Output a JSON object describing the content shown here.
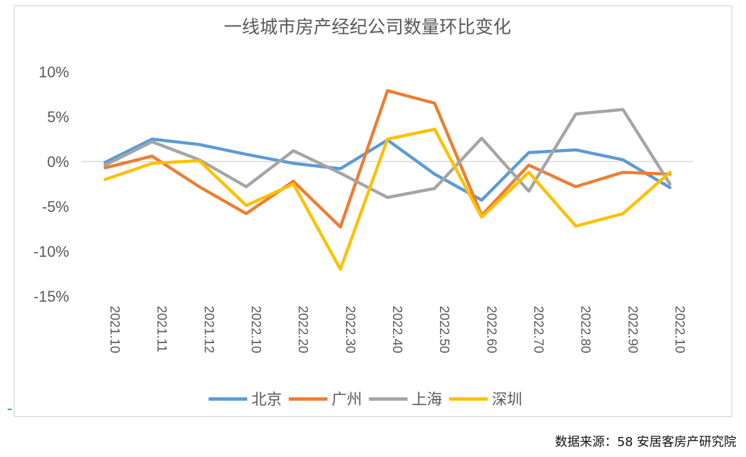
{
  "chart_data": {
    "type": "line",
    "title": "一线城市房产经纪公司数量环比变化",
    "categories": [
      "2021.10",
      "2021.11",
      "2021.12",
      "2022.10",
      "2022.20",
      "2022.30",
      "2022.40",
      "2022.50",
      "2022.60",
      "2022.70",
      "2022.80",
      "2022.90",
      "2022.10"
    ],
    "y_ticks": [
      10,
      5,
      0,
      -5,
      -10,
      -15
    ],
    "y_tick_labels": [
      "10%",
      "5%",
      "0%",
      "-5%",
      "-10%",
      "-15%"
    ],
    "ylim": [
      -15,
      10
    ],
    "grid": false,
    "zero_line": true,
    "legend_position": "bottom",
    "series": [
      {
        "name": "北京",
        "color": "#5b9bd5",
        "values": [
          -0.1,
          2.5,
          1.9,
          0.8,
          -0.2,
          -0.8,
          2.4,
          -1.4,
          -4.3,
          1.0,
          1.3,
          0.2,
          -2.9
        ]
      },
      {
        "name": "广州",
        "color": "#ed7d31",
        "values": [
          -0.7,
          0.6,
          -2.8,
          -5.8,
          -2.2,
          -7.3,
          7.9,
          6.5,
          -6.0,
          -0.4,
          -2.8,
          -1.2,
          -1.4
        ]
      },
      {
        "name": "上海",
        "color": "#a5a5a5",
        "values": [
          -0.4,
          2.2,
          0.2,
          -2.8,
          1.2,
          -1.3,
          -4.0,
          -3.0,
          2.6,
          -3.3,
          5.3,
          5.8,
          -2.5
        ]
      },
      {
        "name": "深圳",
        "color": "#ffc000",
        "values": [
          -2.0,
          -0.2,
          0.1,
          -4.9,
          -2.5,
          -12.0,
          2.5,
          3.6,
          -6.2,
          -1.2,
          -7.2,
          -5.8,
          -1.2
        ]
      }
    ]
  },
  "source_note": "数据来源：58 安居客房产研究院",
  "colors": {
    "axis_text": "#595959",
    "title": "#595959",
    "zero_line": "#d9d9d9",
    "frame": "#d0d0d0",
    "accent_mark": "#2aa7a0"
  }
}
